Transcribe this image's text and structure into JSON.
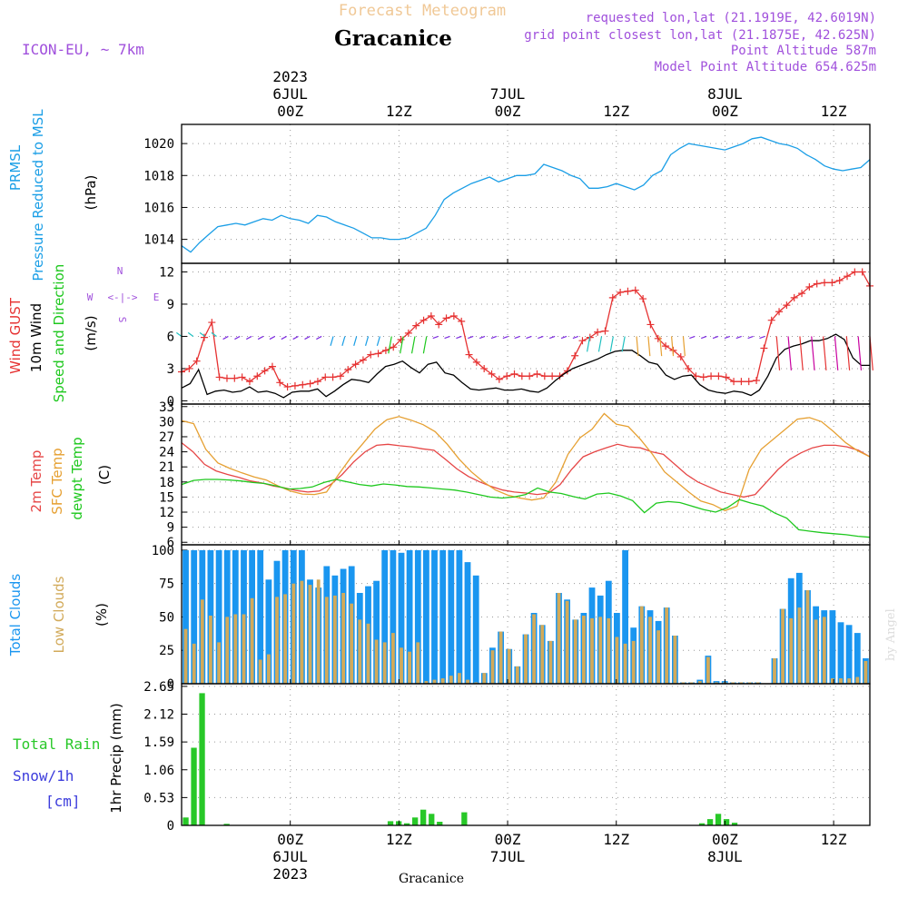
{
  "header": {
    "subtitle": "Forecast Meteogram",
    "title": "Gracanice",
    "model": "ICON-EU, ~ 7km",
    "info": [
      "requested lon,lat (21.1919E, 42.6019N)",
      "grid point closest lon,lat (21.1875E, 42.625N)",
      "Point Altitude 587m",
      "Model Point Altitude 654.625m"
    ],
    "credit": "by Angel",
    "footer": "Gracanice"
  },
  "colors": {
    "pressure": "#1a9ee6",
    "gust": "#e63232",
    "wind": "#000000",
    "windlabel": "#1ec81e",
    "t2m": "#e64646",
    "sfc": "#e6a032",
    "dew": "#1ec81e",
    "total_cloud": "#1a96f0",
    "low_cloud": "#d2aa5a",
    "rain": "#28c828",
    "snow": "#3c3cdc",
    "info": "#a050dc",
    "subtitle": "#f0c896"
  },
  "time_axis": {
    "top_labels": [
      {
        "hour": 12,
        "lines": [
          "2023",
          "6JUL",
          "00Z"
        ]
      },
      {
        "hour": 24,
        "lines": [
          "12Z"
        ]
      },
      {
        "hour": 36,
        "lines": [
          "7JUL",
          "00Z"
        ]
      },
      {
        "hour": 48,
        "lines": [
          "12Z"
        ]
      },
      {
        "hour": 60,
        "lines": [
          "8JUL",
          "00Z"
        ]
      },
      {
        "hour": 72,
        "lines": [
          "12Z"
        ]
      }
    ],
    "bottom_labels": [
      {
        "hour": 12,
        "lines": [
          "00Z",
          "6JUL",
          "2023"
        ]
      },
      {
        "hour": 24,
        "lines": [
          "12Z"
        ]
      },
      {
        "hour": 36,
        "lines": [
          "00Z",
          "7JUL"
        ]
      },
      {
        "hour": 48,
        "lines": [
          "12Z"
        ]
      },
      {
        "hour": 60,
        "lines": [
          "00Z",
          "8JUL"
        ]
      },
      {
        "hour": 72,
        "lines": [
          "12Z"
        ]
      }
    ],
    "range": [
      0,
      76
    ]
  },
  "compass": {
    "n": "N",
    "s": "S",
    "w": "W",
    "e": "E",
    "arrow": "<-|->"
  },
  "chart_data": [
    {
      "type": "line",
      "name": "pressure",
      "ylabel_lines": [
        "PRMSL",
        "Pressure Reduced to MSL"
      ],
      "unit": "(hPa)",
      "ylim": [
        1012.5,
        1021.2
      ],
      "yticks": [
        1014,
        1016,
        1018,
        1020
      ],
      "grid": true,
      "series": [
        {
          "name": "PRMSL",
          "values": [
            1013.6,
            1013.2,
            1013.8,
            1014.3,
            1014.8,
            1014.9,
            1015.0,
            1014.9,
            1015.1,
            1015.3,
            1015.2,
            1015.5,
            1015.3,
            1015.2,
            1015.0,
            1015.5,
            1015.4,
            1015.1,
            1014.9,
            1014.7,
            1014.4,
            1014.1,
            1014.1,
            1014.0,
            1014.0,
            1014.1,
            1014.4,
            1014.7,
            1015.5,
            1016.5,
            1016.9,
            1017.2,
            1017.5,
            1017.7,
            1017.9,
            1017.6,
            1017.8,
            1018.0,
            1018.0,
            1018.1,
            1018.7,
            1018.5,
            1018.3,
            1018.0,
            1017.8,
            1017.2,
            1017.2,
            1017.3,
            1017.5,
            1017.3,
            1017.1,
            1017.4,
            1018.0,
            1018.3,
            1019.3,
            1019.7,
            1020.0,
            1019.9,
            1019.8,
            1019.7,
            1019.6,
            1019.8,
            1020.0,
            1020.3,
            1020.4,
            1020.2,
            1020.0,
            1019.9,
            1019.7,
            1019.3,
            1019.0,
            1018.6,
            1018.4,
            1018.3,
            1018.4,
            1018.5,
            1019.0
          ]
        }
      ]
    },
    {
      "type": "line",
      "name": "wind",
      "ylabel_lines": [
        "Wind GUST",
        "10m Wind",
        "Speed and Direction"
      ],
      "unit": "(m/s)",
      "ylim": [
        -0.3,
        12.8
      ],
      "yticks": [
        0,
        3,
        6,
        9,
        12
      ],
      "grid": true,
      "series": [
        {
          "name": "Wind GUST",
          "values": [
            2.7,
            3.0,
            3.7,
            5.9,
            7.3,
            2.2,
            2.1,
            2.1,
            2.2,
            1.8,
            2.3,
            2.8,
            3.2,
            1.7,
            1.3,
            1.4,
            1.5,
            1.6,
            1.8,
            2.2,
            2.2,
            2.3,
            2.9,
            3.4,
            3.8,
            4.3,
            4.4,
            4.7,
            5.0,
            5.7,
            6.3,
            7.0,
            7.5,
            7.9,
            7.1,
            7.7,
            7.9,
            7.4,
            4.3,
            3.6,
            3.0,
            2.5,
            2.0,
            2.3,
            2.5,
            2.3,
            2.3,
            2.5,
            2.3,
            2.3,
            2.3,
            2.8,
            4.2,
            5.6,
            5.9,
            6.4,
            6.5,
            9.6,
            10.1,
            10.2,
            10.3,
            9.5,
            7.1,
            5.8,
            5.1,
            4.7,
            4.1,
            3.0,
            2.3,
            2.2,
            2.3,
            2.3,
            2.2,
            1.8,
            1.8,
            1.8,
            1.9,
            4.9,
            7.5,
            8.3,
            8.9,
            9.6,
            10.0,
            10.6,
            10.9,
            11.0,
            11.0,
            11.2,
            11.6,
            12.0,
            12.0,
            10.7
          ]
        },
        {
          "name": "10m Wind",
          "values": [
            1.2,
            1.6,
            2.9,
            0.6,
            0.9,
            1.0,
            0.8,
            0.9,
            1.3,
            0.8,
            0.9,
            0.7,
            0.3,
            0.8,
            0.9,
            0.9,
            1.1,
            0.4,
            0.9,
            1.5,
            2.0,
            1.9,
            1.7,
            2.5,
            3.2,
            3.4,
            3.7,
            3.1,
            2.6,
            3.4,
            3.6,
            2.6,
            2.4,
            1.7,
            1.1,
            1.0,
            1.1,
            1.2,
            1.0,
            1.0,
            1.1,
            0.9,
            0.8,
            1.2,
            1.9,
            2.5,
            3.0,
            3.3,
            3.6,
            3.9,
            4.3,
            4.6,
            4.7,
            4.7,
            4.2,
            3.6,
            3.4,
            2.4,
            2.0,
            2.3,
            2.4,
            1.5,
            1.0,
            0.8,
            0.7,
            0.9,
            0.8,
            0.5,
            1.0,
            2.3,
            4.0,
            4.8,
            5.1,
            5.3,
            5.6,
            5.6,
            5.8,
            6.2,
            5.7,
            4.0,
            3.3,
            3.3
          ]
        }
      ]
    },
    {
      "type": "line",
      "name": "temperature",
      "ylabel_lines": [
        "2m Temp",
        "SFC Temp",
        "dewpt Temp"
      ],
      "unit": "(C)",
      "ylim": [
        5.5,
        33.5
      ],
      "yticks": [
        6,
        9,
        12,
        15,
        18,
        21,
        24,
        27,
        30,
        33
      ],
      "grid": true,
      "series": [
        {
          "name": "2m Temp",
          "values": [
            25.8,
            24.0,
            21.5,
            20.2,
            19.5,
            18.9,
            18.2,
            17.8,
            17.2,
            16.8,
            16.3,
            16.0,
            16.2,
            17.5,
            19.5,
            22.0,
            24.0,
            25.3,
            25.5,
            25.2,
            25.0,
            24.6,
            24.3,
            22.5,
            20.6,
            19.1,
            18.0,
            17.1,
            16.4,
            16.0,
            15.8,
            15.5,
            15.8,
            17.5,
            20.5,
            23.0,
            24.0,
            24.8,
            25.5,
            25.0,
            24.8,
            24.0,
            23.5,
            21.5,
            19.5,
            18.0,
            17.0,
            16.0,
            15.5,
            15.0,
            15.5,
            18.0,
            20.5,
            22.5,
            23.8,
            24.8,
            25.3,
            25.3,
            25.0,
            24.3,
            23.0
          ]
        },
        {
          "name": "SFC Temp",
          "values": [
            30.2,
            29.6,
            24.5,
            21.8,
            20.7,
            19.8,
            19.0,
            18.4,
            17.2,
            16.2,
            15.6,
            15.5,
            16.0,
            19.5,
            22.8,
            25.6,
            28.5,
            30.4,
            31.0,
            30.3,
            29.4,
            28.0,
            25.5,
            22.5,
            20.0,
            18.0,
            16.4,
            15.4,
            14.8,
            14.4,
            14.8,
            18.0,
            23.5,
            26.8,
            28.5,
            31.6,
            29.5,
            29.0,
            26.5,
            23.5,
            20.0,
            18.0,
            16.0,
            14.2,
            13.5,
            12.3,
            13.2,
            20.5,
            24.5,
            26.5,
            28.5,
            30.5,
            30.8,
            30.0,
            28.0,
            25.8,
            24.2,
            23.0
          ]
        },
        {
          "name": "dewpt Temp",
          "values": [
            17.5,
            18.3,
            18.5,
            18.5,
            18.4,
            18.2,
            17.9,
            17.7,
            17.2,
            16.6,
            16.7,
            17.0,
            17.9,
            18.5,
            18.0,
            17.5,
            17.2,
            17.6,
            17.4,
            17.1,
            17.0,
            16.8,
            16.6,
            16.4,
            16.0,
            15.5,
            15.0,
            14.8,
            15.0,
            15.5,
            16.8,
            16.0,
            15.7,
            15.1,
            14.6,
            15.6,
            15.8,
            15.2,
            14.3,
            11.9,
            13.8,
            14.1,
            13.9,
            13.2,
            12.5,
            12.0,
            12.9,
            14.5,
            13.8,
            13.2,
            11.8,
            10.8,
            8.5,
            8.2,
            7.9,
            7.7,
            7.5,
            7.2,
            7.0
          ]
        }
      ]
    },
    {
      "type": "bar",
      "name": "clouds",
      "ylabel_lines": [
        "Total Clouds",
        "Low Clouds"
      ],
      "unit": "(%)",
      "ylim": [
        0,
        104
      ],
      "yticks": [
        0,
        25,
        50,
        75,
        100
      ],
      "grid": true,
      "series": [
        {
          "name": "Total Clouds",
          "values": [
            100,
            100,
            100,
            100,
            100,
            100,
            100,
            100,
            100,
            100,
            78,
            92,
            100,
            100,
            100,
            78,
            72,
            88,
            81,
            86,
            88,
            68,
            73,
            77,
            100,
            100,
            98,
            100,
            100,
            100,
            100,
            100,
            100,
            100,
            91,
            81,
            8,
            27,
            39,
            26,
            13,
            37,
            53,
            44,
            32,
            68,
            63,
            48,
            53,
            72,
            66,
            77,
            53,
            100,
            42,
            58,
            55,
            47,
            57,
            36,
            1,
            1,
            3,
            21,
            2,
            2,
            1,
            1,
            1,
            1,
            0,
            19,
            56,
            79,
            83,
            70,
            58,
            55,
            55,
            46,
            44,
            38,
            19
          ]
        },
        {
          "name": "Low Clouds",
          "values": [
            41,
            30,
            63,
            51,
            31,
            50,
            52,
            52,
            64,
            18,
            22,
            65,
            67,
            75,
            77,
            74,
            78,
            65,
            66,
            68,
            60,
            48,
            45,
            33,
            31,
            38,
            27,
            24,
            31,
            2,
            3,
            4,
            6,
            8,
            3,
            1,
            8,
            25,
            39,
            26,
            13,
            37,
            52,
            44,
            32,
            68,
            62,
            48,
            51,
            49,
            50,
            49,
            35,
            30,
            32,
            58,
            50,
            40,
            57,
            36,
            1,
            1,
            2,
            20,
            1,
            1,
            1,
            1,
            1,
            1,
            0,
            19,
            56,
            49,
            57,
            70,
            48,
            50,
            4,
            4,
            4,
            5,
            17
          ]
        }
      ]
    },
    {
      "type": "bar",
      "name": "precip",
      "ylabel_lines": [
        "1hr Precip (mm)"
      ],
      "side_lines": [
        "Total Rain",
        "Snow/1h",
        "[cm]"
      ],
      "ylim": [
        0,
        2.7
      ],
      "yticks": [
        0,
        0.53,
        1.06,
        1.59,
        2.12,
        2.65
      ],
      "grid": true,
      "series": [
        {
          "name": "Total Rain",
          "values": [
            0.15,
            1.48,
            2.52,
            0,
            0,
            0.03,
            0,
            0,
            0,
            0,
            0,
            0,
            0,
            0,
            0,
            0,
            0,
            0,
            0,
            0,
            0,
            0,
            0,
            0,
            0,
            0.08,
            0.08,
            0.04,
            0.15,
            0.3,
            0.22,
            0.07,
            0,
            0,
            0.25,
            0,
            0,
            0,
            0,
            0,
            0,
            0,
            0,
            0,
            0,
            0,
            0,
            0,
            0,
            0,
            0,
            0,
            0,
            0,
            0,
            0,
            0,
            0,
            0,
            0,
            0,
            0,
            0,
            0.04,
            0.12,
            0.22,
            0.12,
            0.05,
            0,
            0,
            0,
            0,
            0,
            0,
            0,
            0,
            0,
            0,
            0,
            0,
            0,
            0,
            0,
            0
          ]
        }
      ]
    }
  ]
}
